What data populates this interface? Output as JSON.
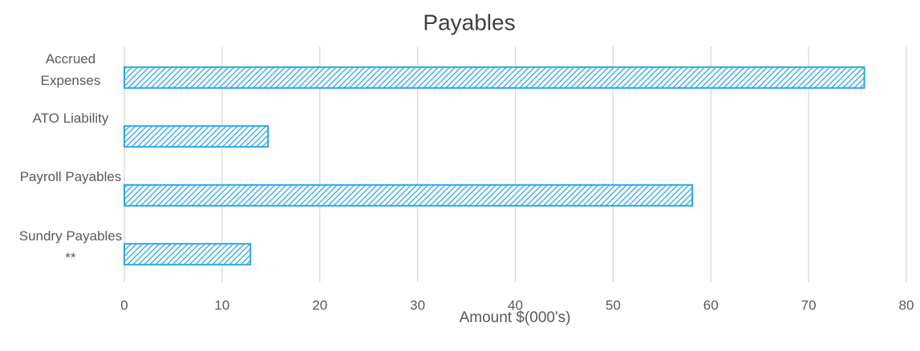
{
  "chart_data": {
    "type": "bar",
    "orientation": "horizontal",
    "title": "Payables",
    "x_label": "Amount $(000's)",
    "categories": [
      "Accrued Expenses",
      "ATO Liability",
      "Payroll Payables",
      "Sundry Payables **"
    ],
    "values": [
      75.7,
      14.7,
      58.1,
      12.9
    ],
    "color": "#29a8e0",
    "xlim": [
      0,
      80
    ],
    "xticks": [
      0,
      10,
      20,
      30,
      40,
      50,
      60,
      70,
      80
    ],
    "grid": true
  }
}
